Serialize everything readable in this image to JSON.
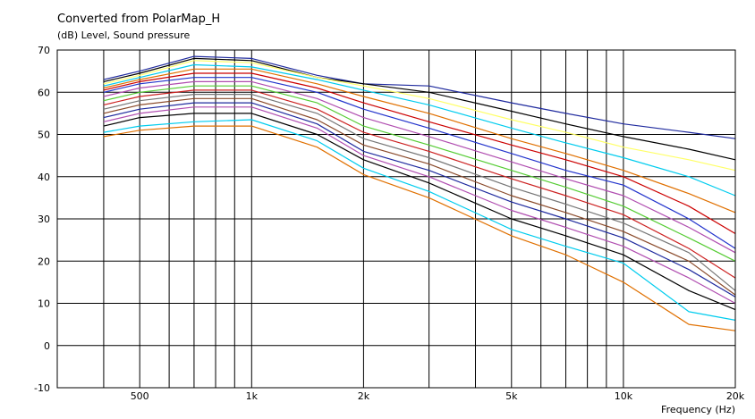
{
  "chart_data": {
    "type": "line",
    "title": "Converted from PolarMap_H",
    "ylabel": "(dB)  Level, Sound pressure",
    "xlabel": "Frequency  (Hz)",
    "x_scale": "log",
    "xlim": [
      300,
      20000
    ],
    "ylim": [
      -10,
      70
    ],
    "grid": true,
    "legend": "none",
    "x_tick_labels": [
      {
        "value": 500,
        "label": "500"
      },
      {
        "value": 1000,
        "label": "1k"
      },
      {
        "value": 2000,
        "label": "2k"
      },
      {
        "value": 5000,
        "label": "5k"
      },
      {
        "value": 10000,
        "label": "10k"
      },
      {
        "value": 20000,
        "label": "20k"
      }
    ],
    "y_ticks": [
      70,
      60,
      50,
      40,
      30,
      20,
      10,
      0,
      -10
    ],
    "x": [
      400,
      500,
      700,
      1000,
      1500,
      2000,
      3000,
      5000,
      7000,
      10000,
      15000,
      20000
    ],
    "series": [
      {
        "color": "#1f2a9e",
        "values": [
          63,
          65,
          68.5,
          68,
          64,
          62,
          61.5,
          57.5,
          55,
          52.5,
          50.5,
          49
        ]
      },
      {
        "color": "#000000",
        "values": [
          62.5,
          64.5,
          68,
          67.5,
          63.5,
          62,
          60,
          55.5,
          52.5,
          49.5,
          46.5,
          44
        ]
      },
      {
        "color": "#ffff66",
        "values": [
          62,
          64,
          67.5,
          67,
          63.5,
          61.5,
          58.5,
          53.5,
          50.5,
          47,
          44,
          41.5
        ]
      },
      {
        "color": "#00ccee",
        "values": [
          61.5,
          63.5,
          66.5,
          66,
          63,
          60.5,
          57,
          51.5,
          48,
          44.5,
          40,
          35.5
        ]
      },
      {
        "color": "#e07000",
        "values": [
          61,
          63,
          65.5,
          65.5,
          62,
          59,
          55,
          49,
          45.5,
          41.5,
          36,
          31.5
        ]
      },
      {
        "color": "#cc0000",
        "values": [
          60.5,
          62.5,
          64.5,
          64.5,
          61,
          57.5,
          53,
          47.5,
          44,
          40,
          33,
          26.5
        ]
      },
      {
        "color": "#2233cc",
        "values": [
          60,
          62,
          63.5,
          63.5,
          60,
          56,
          51.5,
          45.5,
          41.5,
          38,
          30,
          23
        ]
      },
      {
        "color": "#b04db0",
        "values": [
          59,
          61,
          62.5,
          62.5,
          58.5,
          54,
          49.5,
          43.5,
          39.5,
          35.5,
          28,
          22
        ]
      },
      {
        "color": "#55cc33",
        "values": [
          58,
          60,
          61.5,
          61.5,
          57.5,
          52,
          47.5,
          41.5,
          37.5,
          33,
          25.5,
          20
        ]
      },
      {
        "color": "#cc2222",
        "values": [
          57,
          59,
          60.5,
          60.5,
          56,
          50.5,
          46,
          39.5,
          35.5,
          31,
          23,
          16
        ]
      },
      {
        "color": "#777777",
        "values": [
          56,
          58,
          59.5,
          59.5,
          55,
          49,
          44.5,
          37.5,
          33.5,
          29,
          22,
          13
        ]
      },
      {
        "color": "#8a4a2a",
        "values": [
          55,
          57,
          58.5,
          58.5,
          53.5,
          47.5,
          43,
          35.5,
          31.5,
          27,
          20,
          12
        ]
      },
      {
        "color": "#1f2a9e",
        "values": [
          54,
          56,
          57.5,
          57.5,
          52.5,
          46,
          41.5,
          34,
          30,
          25.5,
          18,
          11.5
        ]
      },
      {
        "color": "#b04db0",
        "values": [
          53,
          55,
          56.5,
          56.5,
          51.5,
          45,
          40,
          32,
          28,
          23.5,
          16,
          10
        ]
      },
      {
        "color": "#000000",
        "values": [
          52,
          54,
          55,
          55,
          50,
          44,
          38.5,
          30,
          26,
          21.5,
          13,
          8.5
        ]
      },
      {
        "color": "#00ccee",
        "values": [
          50.5,
          52,
          53,
          53.5,
          48.5,
          42,
          36.5,
          27.5,
          23.5,
          19.5,
          8,
          6
        ]
      },
      {
        "color": "#e07000",
        "values": [
          49.5,
          51,
          52,
          52,
          47,
          40.5,
          35,
          26,
          21.5,
          15,
          5,
          3.5
        ]
      }
    ]
  }
}
